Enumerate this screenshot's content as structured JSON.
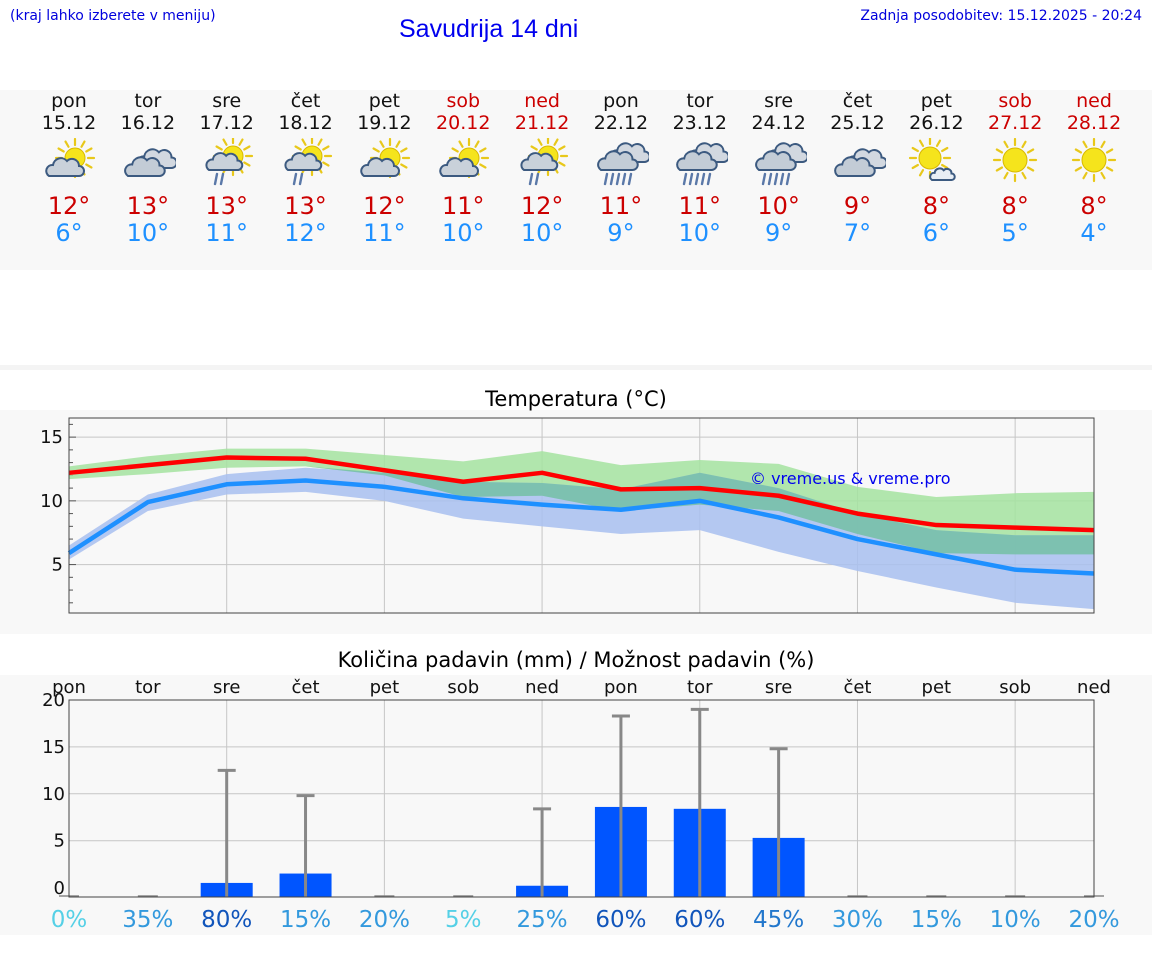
{
  "header": {
    "hint": "(kraj lahko izberete v meniju)",
    "title": "Savudrija 14 dni",
    "updated": "Zadnja posodobitev: 15.12.2025 - 20:24"
  },
  "days": [
    {
      "name": "pon",
      "date": "15.12",
      "weekend": false,
      "icon": "partly-cloudy-icon",
      "tmax": "12°",
      "tmin": "6°"
    },
    {
      "name": "tor",
      "date": "16.12",
      "weekend": false,
      "icon": "cloudy-icon",
      "tmax": "13°",
      "tmin": "10°"
    },
    {
      "name": "sre",
      "date": "17.12",
      "weekend": false,
      "icon": "sun-shower-icon",
      "tmax": "13°",
      "tmin": "11°"
    },
    {
      "name": "čet",
      "date": "18.12",
      "weekend": false,
      "icon": "sun-shower-icon",
      "tmax": "13°",
      "tmin": "12°"
    },
    {
      "name": "pet",
      "date": "19.12",
      "weekend": false,
      "icon": "partly-cloudy-icon",
      "tmax": "12°",
      "tmin": "11°"
    },
    {
      "name": "sob",
      "date": "20.12",
      "weekend": true,
      "icon": "partly-cloudy-icon",
      "tmax": "11°",
      "tmin": "10°"
    },
    {
      "name": "ned",
      "date": "21.12",
      "weekend": true,
      "icon": "sun-shower-icon",
      "tmax": "12°",
      "tmin": "10°"
    },
    {
      "name": "pon",
      "date": "22.12",
      "weekend": false,
      "icon": "rain-cloud-icon",
      "tmax": "11°",
      "tmin": "9°"
    },
    {
      "name": "tor",
      "date": "23.12",
      "weekend": false,
      "icon": "rain-cloud-icon",
      "tmax": "11°",
      "tmin": "10°"
    },
    {
      "name": "sre",
      "date": "24.12",
      "weekend": false,
      "icon": "rain-cloud-icon",
      "tmax": "10°",
      "tmin": "9°"
    },
    {
      "name": "čet",
      "date": "25.12",
      "weekend": false,
      "icon": "cloudy-icon",
      "tmax": "9°",
      "tmin": "7°"
    },
    {
      "name": "pet",
      "date": "26.12",
      "weekend": false,
      "icon": "sun-small-cloud-icon",
      "tmax": "8°",
      "tmin": "6°"
    },
    {
      "name": "sob",
      "date": "27.12",
      "weekend": true,
      "icon": "sun-icon",
      "tmax": "8°",
      "tmin": "5°"
    },
    {
      "name": "ned",
      "date": "28.12",
      "weekend": true,
      "icon": "sun-icon",
      "tmax": "8°",
      "tmin": "4°"
    }
  ],
  "chart_data": [
    {
      "type": "line",
      "title": "Temperatura (°C)",
      "watermark": "© vreme.us & vreme.pro",
      "x": [
        0,
        1,
        2,
        3,
        4,
        5,
        6,
        7,
        8,
        9,
        10,
        11,
        12,
        13
      ],
      "ylim": [
        1.2,
        16.5
      ],
      "yticks": [
        5,
        10,
        15
      ],
      "series": [
        {
          "name": "max",
          "color": "#ff0000",
          "values": [
            12.2,
            12.8,
            13.4,
            13.3,
            12.4,
            11.5,
            12.2,
            10.9,
            11.0,
            10.4,
            9.0,
            8.1,
            7.9,
            7.7
          ]
        },
        {
          "name": "min",
          "color": "#1e90ff",
          "values": [
            5.9,
            9.9,
            11.3,
            11.6,
            11.1,
            10.2,
            9.7,
            9.3,
            10.0,
            8.7,
            7.0,
            5.8,
            4.6,
            4.3
          ]
        }
      ],
      "bands": [
        {
          "name": "max-range",
          "color": "#a4e3a0",
          "low": [
            11.7,
            12.1,
            12.6,
            12.7,
            12.0,
            10.3,
            10.4,
            9.2,
            9.7,
            9.2,
            7.4,
            5.9,
            5.8,
            5.8
          ],
          "high": [
            12.7,
            13.5,
            14.1,
            14.1,
            13.6,
            13.1,
            13.9,
            12.8,
            13.2,
            12.9,
            11.1,
            10.3,
            10.6,
            10.7
          ]
        },
        {
          "name": "min-range",
          "color": "#a8c0f0",
          "low": [
            5.4,
            9.2,
            10.5,
            10.7,
            10.0,
            8.6,
            8.0,
            7.4,
            7.7,
            6.0,
            4.5,
            3.2,
            2.0,
            1.5
          ],
          "high": [
            6.5,
            10.5,
            12.1,
            12.6,
            12.2,
            11.5,
            11.4,
            10.9,
            12.2,
            11.0,
            9.0,
            7.7,
            7.3,
            7.3
          ]
        }
      ]
    },
    {
      "type": "bar",
      "title": "Količina padavin (mm) / Možnost padavin (%)",
      "categories": [
        "pon",
        "tor",
        "sre",
        "čet",
        "pet",
        "sob",
        "ned",
        "pon",
        "tor",
        "sre",
        "čet",
        "pet",
        "sob",
        "ned"
      ],
      "values": [
        0,
        0,
        0.5,
        1.5,
        0,
        0,
        0.2,
        8.6,
        8.4,
        5.3,
        0,
        0,
        0,
        0
      ],
      "error_high": [
        0,
        0,
        12.5,
        9.8,
        0,
        0,
        8.4,
        18.3,
        19.0,
        14.8,
        0,
        0,
        0,
        0
      ],
      "probability": [
        "0%",
        "35%",
        "80%",
        "15%",
        "20%",
        "5%",
        "25%",
        "60%",
        "60%",
        "45%",
        "30%",
        "15%",
        "10%",
        "20%"
      ],
      "prob_values": [
        0,
        35,
        80,
        15,
        20,
        5,
        25,
        60,
        60,
        45,
        30,
        15,
        10,
        20
      ],
      "ylim": [
        -1,
        20
      ],
      "yticks": [
        0,
        5,
        10,
        15,
        20
      ],
      "bar_color": "#0055ff",
      "whisker_color": "#888888"
    }
  ]
}
